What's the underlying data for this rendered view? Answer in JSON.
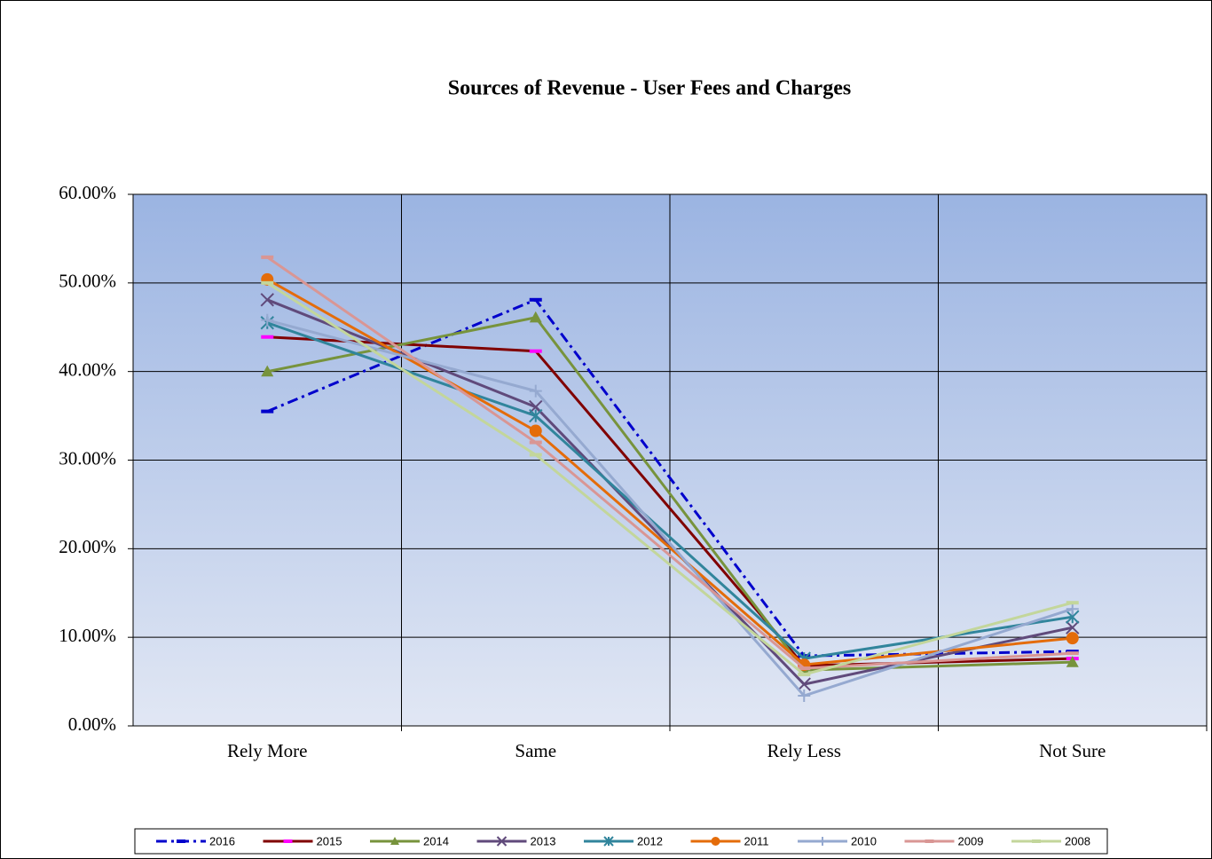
{
  "chart_data": {
    "type": "line",
    "title": "Sources of Revenue - User Fees and Charges",
    "categories": [
      "Rely More",
      "Same",
      "Rely Less",
      "Not Sure"
    ],
    "series": [
      {
        "name": "2016",
        "color": "#0000cc",
        "marker": "dash",
        "dash": "dashdot",
        "values": [
          35.5,
          48.1,
          7.9,
          8.4
        ]
      },
      {
        "name": "2015",
        "color": "#800000",
        "marker": "dash",
        "marker_color": "#ff00ff",
        "values": [
          43.9,
          42.3,
          6.8,
          7.6
        ]
      },
      {
        "name": "2014",
        "color": "#77933c",
        "marker": "triangle",
        "values": [
          40.0,
          46.1,
          6.3,
          7.2
        ]
      },
      {
        "name": "2013",
        "color": "#604a7b",
        "marker": "x",
        "values": [
          48.1,
          36.0,
          4.7,
          11.1
        ]
      },
      {
        "name": "2012",
        "color": "#31859c",
        "marker": "asterisk",
        "values": [
          45.5,
          35.0,
          7.6,
          12.3
        ]
      },
      {
        "name": "2011",
        "color": "#e46c0a",
        "marker": "circle",
        "values": [
          50.4,
          33.3,
          6.9,
          9.9
        ]
      },
      {
        "name": "2010",
        "color": "#95a9d0",
        "marker": "plus",
        "values": [
          45.8,
          37.8,
          3.4,
          13.2
        ]
      },
      {
        "name": "2009",
        "color": "#d99694",
        "marker": "dash",
        "values": [
          52.9,
          32.0,
          6.5,
          8.2
        ]
      },
      {
        "name": "2008",
        "color": "#c3d69b",
        "marker": "dash",
        "values": [
          50.0,
          30.6,
          5.8,
          13.9
        ]
      }
    ],
    "ylim": [
      0,
      60
    ],
    "yticks": [
      {
        "value": 0,
        "label": "0.00%"
      },
      {
        "value": 10,
        "label": "10.00%"
      },
      {
        "value": 20,
        "label": "20.00%"
      },
      {
        "value": 30,
        "label": "30.00%"
      },
      {
        "value": 40,
        "label": "40.00%"
      },
      {
        "value": 50,
        "label": "50.00%"
      },
      {
        "value": 60,
        "label": "60.00%"
      }
    ],
    "grid": true,
    "legend": "bottom"
  }
}
